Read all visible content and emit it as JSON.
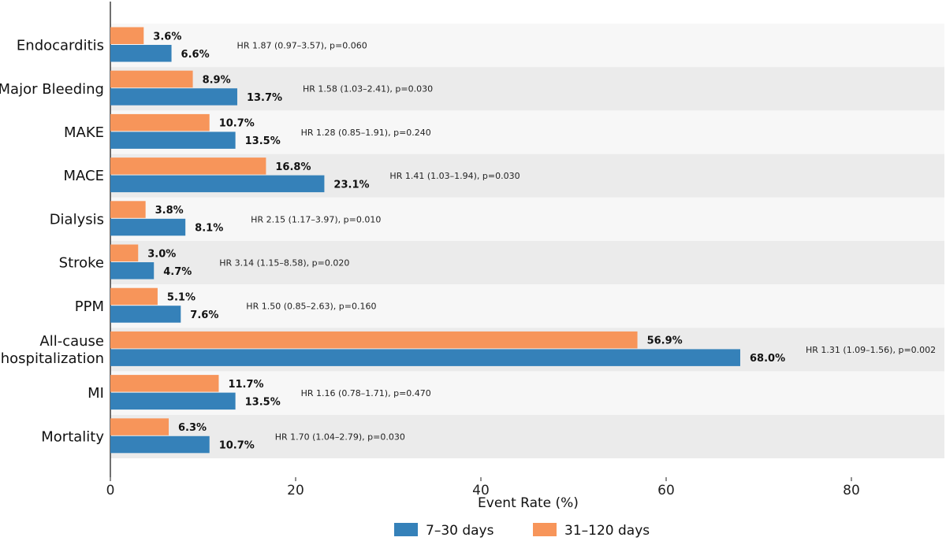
{
  "chart_data": {
    "type": "bar",
    "orientation": "horizontal",
    "xlabel": "Event Rate (%)",
    "xlim": [
      0,
      90
    ],
    "xticks": [
      0,
      20,
      40,
      60,
      80
    ],
    "categories": [
      "Endocarditis",
      "Major Bleeding",
      "MAKE",
      "MACE",
      "Dialysis",
      "Stroke",
      "PPM",
      "All-cause\nhospitalization",
      "MI",
      "Mortality"
    ],
    "series": [
      {
        "name": "31–120 days",
        "color": "#f7955a",
        "values": [
          3.6,
          8.9,
          10.7,
          16.8,
          3.8,
          3.0,
          5.1,
          56.9,
          11.7,
          6.3
        ],
        "labels": [
          "3.6%",
          "8.9%",
          "10.7%",
          "16.8%",
          "3.8%",
          "3.0%",
          "5.1%",
          "56.9%",
          "11.7%",
          "6.3%"
        ]
      },
      {
        "name": "7–30 days",
        "color": "#3581b9",
        "values": [
          6.6,
          13.7,
          13.5,
          23.1,
          8.1,
          4.7,
          7.6,
          68.0,
          13.5,
          10.7
        ],
        "labels": [
          "6.6%",
          "13.7%",
          "13.5%",
          "23.1%",
          "8.1%",
          "4.7%",
          "7.6%",
          "68.0%",
          "13.5%",
          "10.7%"
        ]
      }
    ],
    "annotations": [
      "HR 1.87 (0.97–3.57), p=0.060",
      "HR 1.58 (1.03–2.41), p=0.030",
      "HR 1.28 (0.85–1.91), p=0.240",
      "HR 1.41 (1.03–1.94), p=0.030",
      "HR 2.15 (1.17–3.97), p=0.010",
      "HR 3.14 (1.15–8.58), p=0.020",
      "HR 1.50 (0.85–2.63), p=0.160",
      "HR 1.31 (1.09–1.56), p=0.002",
      "HR 1.16 (0.78–1.71), p=0.470",
      "HR 1.70 (1.04–2.79), p=0.030"
    ],
    "legend": {
      "placement": "bottom-center",
      "entries": [
        "7–30 days",
        "31–120 days"
      ]
    },
    "row_band_colors": [
      "#f7f7f7",
      "#ebebeb"
    ]
  }
}
